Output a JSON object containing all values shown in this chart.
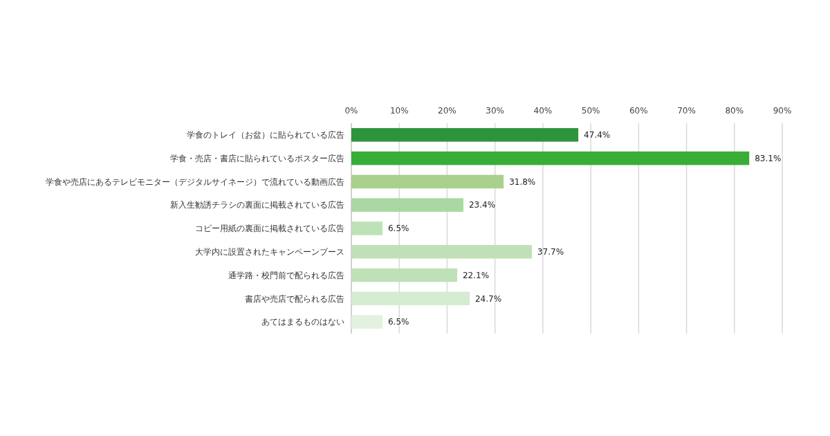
{
  "chart_data": {
    "type": "bar",
    "orientation": "horizontal",
    "categories": [
      "学食のトレイ（お盆）に貼られている広告",
      "学食・売店・書店に貼られているポスター広告",
      "学食や売店にあるテレビモニター（デジタルサイネージ）で流れている動画広告",
      "新入生勧誘チラシの裏面に掲載されている広告",
      "コピー用紙の裏面に掲載されている広告",
      "大学内に設置されたキャンペーンブース",
      "通学路・校門前で配られる広告",
      "書店や売店で配られる広告",
      "あてはまるものはない"
    ],
    "values": [
      47.4,
      83.1,
      31.8,
      23.4,
      6.5,
      37.7,
      22.1,
      24.7,
      6.5
    ],
    "colors": [
      "#2e943c",
      "#38ad38",
      "#a9d08c",
      "#a9d8a2",
      "#bde2b7",
      "#c0e1b7",
      "#c0e1b7",
      "#d4ecd0",
      "#e2f2df"
    ],
    "value_labels": [
      "47.4%",
      "83.1%",
      "31.8%",
      "23.4%",
      "6.5%",
      "37.7%",
      "22.1%",
      "24.7%",
      "6.5%"
    ],
    "xlim": [
      0,
      90
    ],
    "xticks": [
      {
        "value": 0,
        "label": "0%"
      },
      {
        "value": 10,
        "label": "10%"
      },
      {
        "value": 20,
        "label": "20%"
      },
      {
        "value": 30,
        "label": "30%"
      },
      {
        "value": 40,
        "label": "40%"
      },
      {
        "value": 50,
        "label": "50%"
      },
      {
        "value": 60,
        "label": "60%"
      },
      {
        "value": 70,
        "label": "70%"
      },
      {
        "value": 80,
        "label": "80%"
      },
      {
        "value": 90,
        "label": "90%"
      }
    ],
    "grid": "x"
  }
}
